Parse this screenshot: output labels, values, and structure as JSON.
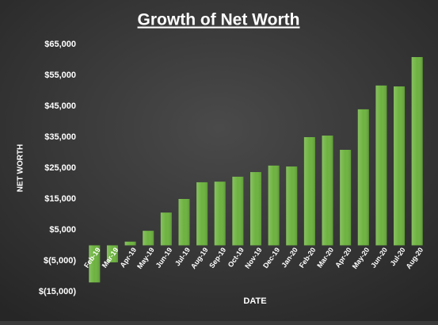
{
  "chart_data": {
    "type": "bar",
    "title": "Growth of Net Worth",
    "x_label": "DATE",
    "y_label": "NET WORTH",
    "categories": [
      "Feb-19",
      "Mar-19",
      "Apr-19",
      "May-19",
      "Jun-19",
      "Jul-19",
      "Aug-19",
      "Sep-19",
      "Oct-19",
      "Nov-19",
      "Dec-19",
      "Jan-20",
      "Feb-20",
      "Mar-20",
      "Apr-20",
      "May-20",
      "Jun-20",
      "Jul-20",
      "Aug-20"
    ],
    "values": [
      -12000,
      -5500,
      1200,
      4700,
      10600,
      15000,
      20400,
      20600,
      22200,
      23700,
      25800,
      25500,
      35000,
      35500,
      30900,
      44000,
      51700,
      51400,
      60900
    ],
    "color": "#6db33f",
    "ylim": [
      -15000,
      65000
    ],
    "yticks": [
      {
        "value": -15000,
        "label": "$(15,000)"
      },
      {
        "value": -5000,
        "label": "$(5,000)"
      },
      {
        "value": 5000,
        "label": "$5,000"
      },
      {
        "value": 15000,
        "label": "$15,000"
      },
      {
        "value": 25000,
        "label": "$25,000"
      },
      {
        "value": 35000,
        "label": "$35,000"
      },
      {
        "value": 45000,
        "label": "$45,000"
      },
      {
        "value": 55000,
        "label": "$55,000"
      },
      {
        "value": 65000,
        "label": "$65,000"
      }
    ],
    "grid": false
  }
}
